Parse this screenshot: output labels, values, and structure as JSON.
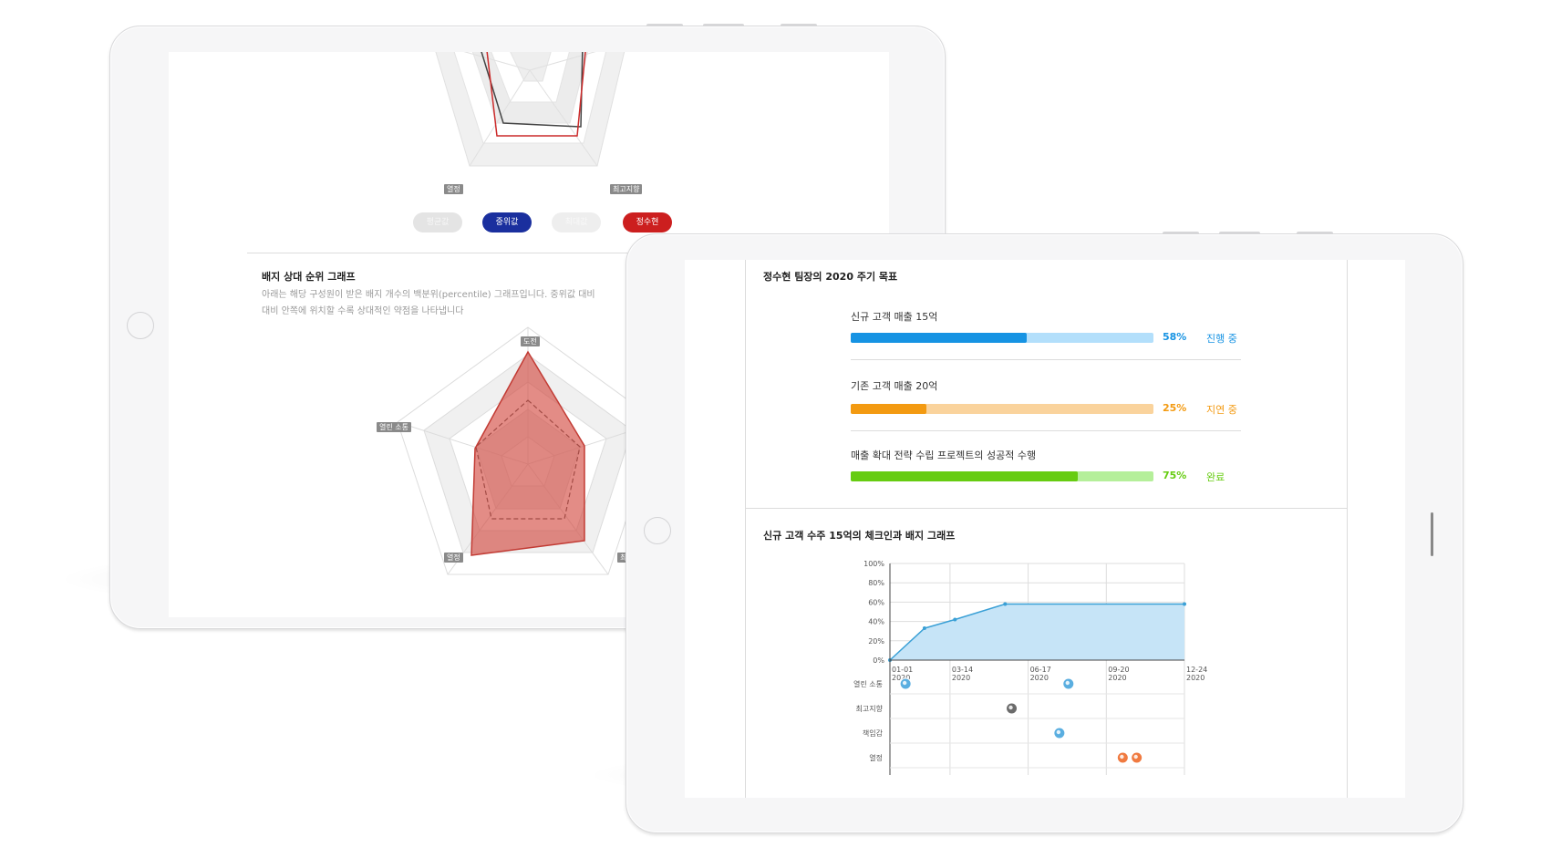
{
  "back_screen": {
    "top_radar_labels": {
      "left": "열정",
      "right": "최고지향"
    },
    "legend": [
      {
        "label": "평균값",
        "active": false,
        "color": "#e4e4e4"
      },
      {
        "label": "중위값",
        "active": true,
        "color": "#1a2f9e"
      },
      {
        "label": "최대값",
        "active": false,
        "color": "#eeeeee"
      },
      {
        "label": "정수현",
        "active": true,
        "color": "#cc1f1f"
      }
    ],
    "section_title": "배지 상대 순위 그래프",
    "description_line1": "아래는 해당 구성원이 받은 배지 개수의 백분위(percentile) 그래프입니다. 중위값 대비",
    "description_line2": "대비 안쪽에 위치할 수록 상대적인 약점을 나타냅니다",
    "radar_labels": {
      "top": "도전",
      "left": "열린 소통",
      "bottom_left": "열정",
      "bottom_right": "최"
    }
  },
  "front_screen": {
    "goals_title": "정수현 팀장의 2020 주기 목표",
    "goals": [
      {
        "label": "신규 고객 매출 15억",
        "progress": 58,
        "percent_text": "58%",
        "status": "진행 중",
        "color": "#1693e3",
        "track": "#b3dffb",
        "status_color": "#1693e3"
      },
      {
        "label": "기존 고객 매출 20억",
        "progress": 25,
        "percent_text": "25%",
        "status": "지연 중",
        "color": "#f39a11",
        "track": "#fad39c",
        "status_color": "#f39a11"
      },
      {
        "label": "매출 확대 전략 수립 프로젝트의 성공적 수행",
        "progress": 75,
        "percent_text": "75%",
        "status": "완료",
        "color": "#66cc11",
        "track": "#b5ef9a",
        "status_color": "#66cc11"
      }
    ],
    "chart_title": "신규 고객 수주 15억의 체크인과 배지 그래프",
    "chart_data": {
      "type": "area",
      "y_ticks": [
        "0%",
        "20%",
        "40%",
        "60%",
        "80%",
        "100%"
      ],
      "ylim": [
        0,
        100
      ],
      "x_ticks": [
        {
          "date": "01-01",
          "year": "2020"
        },
        {
          "date": "03-14",
          "year": "2020"
        },
        {
          "date": "06-17",
          "year": "2020"
        },
        {
          "date": "09-20",
          "year": "2020"
        },
        {
          "date": "12-24",
          "year": "2020"
        }
      ],
      "xlim": [
        "2020-01-01",
        "2020-12-24"
      ],
      "points": [
        {
          "x": "2020-01-01",
          "y": 0
        },
        {
          "x": "2020-02-12",
          "y": 33
        },
        {
          "x": "2020-03-20",
          "y": 42
        },
        {
          "x": "2020-05-20",
          "y": 58
        },
        {
          "x": "2020-12-24",
          "y": 58
        }
      ],
      "fill_color": "#c6e4f7",
      "line_color": "#3aa0d6",
      "badge_rows": [
        "열린 소통",
        "최고지향",
        "책임감",
        "열정"
      ],
      "badges": [
        {
          "row": "열린 소통",
          "x": "2020-01-20",
          "icon": "chat-badge-icon",
          "color": "#5aaee0"
        },
        {
          "row": "열린 소통",
          "x": "2020-08-05",
          "icon": "chat-badge-icon",
          "color": "#5aaee0"
        },
        {
          "row": "최고지향",
          "x": "2020-05-28",
          "icon": "trophy-badge-icon",
          "color": "#6b6b6b"
        },
        {
          "row": "책임감",
          "x": "2020-07-25",
          "icon": "handshake-badge-icon",
          "color": "#5aaee0"
        },
        {
          "row": "열정",
          "x": "2020-10-10",
          "icon": "flame-badge-icon",
          "color": "#f07a40"
        },
        {
          "row": "열정",
          "x": "2020-10-27",
          "icon": "flame-badge-icon",
          "color": "#f07a40"
        }
      ]
    }
  }
}
